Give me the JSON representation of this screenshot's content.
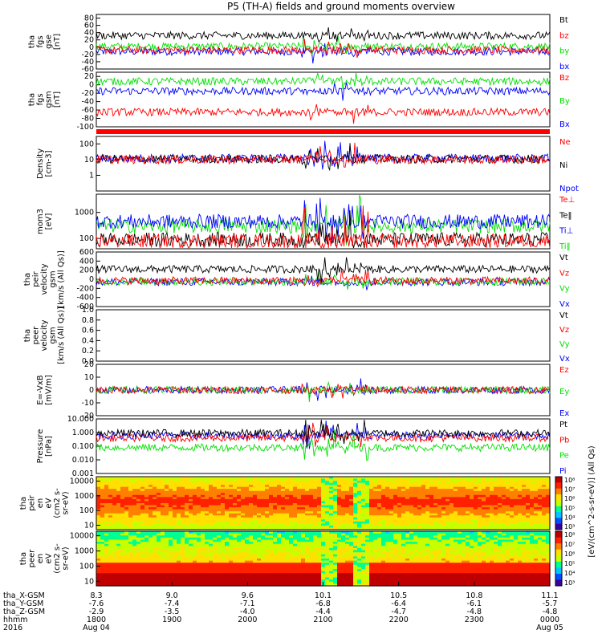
{
  "title": "P5 (TH-A) fields and ground moments overview",
  "colors": {
    "black": "#000000",
    "red": "#ff0000",
    "green": "#00e000",
    "blue": "#0000ff"
  },
  "chart_data": [
    {
      "type": "line",
      "ylabel": [
        "tha",
        "fgs",
        "gse",
        "[nT]"
      ],
      "ylim": [
        -60,
        90
      ],
      "yticks": [
        {
          "v": 80,
          "l": "80"
        },
        {
          "v": 60,
          "l": "60"
        },
        {
          "v": 40,
          "l": "40"
        },
        {
          "v": 20,
          "l": "20"
        },
        {
          "v": 0,
          "l": "0"
        },
        {
          "v": -20,
          "l": "-20"
        },
        {
          "v": -40,
          "l": "-40"
        },
        {
          "v": -60,
          "l": "-60"
        }
      ],
      "series": [
        {
          "name": "Bt",
          "color": "black",
          "base": 32
        },
        {
          "name": "bz",
          "color": "red",
          "base": -8
        },
        {
          "name": "by",
          "color": "green",
          "base": 2
        },
        {
          "name": "bx",
          "color": "blue",
          "base": -12
        }
      ]
    },
    {
      "type": "line",
      "ylabel": [
        "tha",
        "fgs",
        "gsm",
        "[nT]"
      ],
      "ylim": [
        -100,
        30
      ],
      "yticks": [
        {
          "v": 20,
          "l": "20"
        },
        {
          "v": 0,
          "l": "0"
        },
        {
          "v": -20,
          "l": "-20"
        },
        {
          "v": -40,
          "l": "-40"
        },
        {
          "v": -60,
          "l": "-60"
        },
        {
          "v": -80,
          "l": "-80"
        },
        {
          "v": -100,
          "l": "-100"
        }
      ],
      "series": [
        {
          "name": "Bz",
          "color": "red",
          "base": -65
        },
        {
          "name": "By",
          "color": "green",
          "base": 8
        },
        {
          "name": "Bx",
          "color": "blue",
          "base": -15
        }
      ]
    },
    {
      "type": "line",
      "ylabel": [
        "Density",
        "[cm-3]"
      ],
      "log": true,
      "ylim": [
        0.1,
        300
      ],
      "yticks": [
        {
          "v": 100,
          "l": "100"
        },
        {
          "v": 10,
          "l": "10"
        },
        {
          "v": 1,
          "l": "1"
        }
      ],
      "series": [
        {
          "name": "Ne",
          "color": "red",
          "base": 10
        },
        {
          "name": "Ni",
          "color": "black",
          "base": 11
        },
        {
          "name": "Npot",
          "color": "blue",
          "base": 12
        }
      ]
    },
    {
      "type": "line",
      "ylabel": [
        "mom3",
        "[eV]"
      ],
      "log": true,
      "ylim": [
        40,
        5000
      ],
      "yticks": [
        {
          "v": 1000,
          "l": "1000"
        },
        {
          "v": 100,
          "l": "100"
        }
      ],
      "series": [
        {
          "name": "Te⊥",
          "color": "red",
          "base": 80
        },
        {
          "name": "Te‖",
          "color": "black",
          "base": 90
        },
        {
          "name": "Ti⊥",
          "color": "blue",
          "base": 450
        },
        {
          "name": "Ti‖",
          "color": "green",
          "base": 300
        }
      ]
    },
    {
      "type": "line",
      "ylabel": [
        "tha",
        "peir",
        "velocity",
        "gsm",
        "[km/s (All Qs)]"
      ],
      "ylim": [
        -600,
        600
      ],
      "yticks": [
        {
          "v": 600,
          "l": "600"
        },
        {
          "v": 400,
          "l": "400"
        },
        {
          "v": 200,
          "l": "200"
        },
        {
          "v": 0,
          "l": "0"
        },
        {
          "v": -200,
          "l": "-200"
        },
        {
          "v": -400,
          "l": "-400"
        },
        {
          "v": -600,
          "l": "-600"
        }
      ],
      "series": [
        {
          "name": "Vt",
          "color": "black",
          "base": 220
        },
        {
          "name": "Vz",
          "color": "red",
          "base": -30
        },
        {
          "name": "Vy",
          "color": "green",
          "base": -50
        },
        {
          "name": "Vx",
          "color": "blue",
          "base": -60
        }
      ]
    },
    {
      "type": "line",
      "ylabel": [
        "tha",
        "peer",
        "velocity",
        "gsm",
        "[km/s (All Qs)]"
      ],
      "ylim": [
        0,
        1
      ],
      "yticks": [
        {
          "v": 1,
          "l": "1.0"
        },
        {
          "v": 0.8,
          "l": "0.8"
        },
        {
          "v": 0.6,
          "l": "0.6"
        },
        {
          "v": 0.4,
          "l": "0.4"
        },
        {
          "v": 0.2,
          "l": "0.2"
        },
        {
          "v": 0,
          "l": "0.0"
        }
      ],
      "series": [
        {
          "name": "Vt",
          "color": "black"
        },
        {
          "name": "Vz",
          "color": "red"
        },
        {
          "name": "Vy",
          "color": "green"
        },
        {
          "name": "Vx",
          "color": "blue"
        }
      ]
    },
    {
      "type": "line",
      "ylabel": [
        "E=-VxB",
        "[mV/m]"
      ],
      "ylim": [
        -20,
        20
      ],
      "yticks": [
        {
          "v": 20,
          "l": "20"
        },
        {
          "v": 10,
          "l": "10"
        },
        {
          "v": 0,
          "l": "0"
        },
        {
          "v": -10,
          "l": "-10"
        },
        {
          "v": -20,
          "l": "-20"
        }
      ],
      "series": [
        {
          "name": "Ez",
          "color": "red",
          "base": 0
        },
        {
          "name": "Ey",
          "color": "green",
          "base": 0
        },
        {
          "name": "Ex",
          "color": "blue",
          "base": 0
        }
      ]
    },
    {
      "type": "line",
      "ylabel": [
        "Pressure",
        "[nPa]"
      ],
      "log": true,
      "ylim": [
        0.001,
        10
      ],
      "yticks": [
        {
          "v": 10,
          "l": "10.000"
        },
        {
          "v": 1,
          "l": "1.000"
        },
        {
          "v": 0.1,
          "l": "0.100"
        },
        {
          "v": 0.01,
          "l": "0.010"
        },
        {
          "v": 0.001,
          "l": "0.001"
        }
      ],
      "series": [
        {
          "name": "Pt",
          "color": "black",
          "base": 0.9
        },
        {
          "name": "Pb",
          "color": "red",
          "base": 0.4
        },
        {
          "name": "Pe",
          "color": "green",
          "base": 0.08
        },
        {
          "name": "Pi",
          "color": "blue",
          "base": 0.6
        }
      ]
    },
    {
      "type": "heatmap",
      "ylabel": [
        "tha",
        "peir",
        "en",
        "eV",
        "(cm2 s-",
        "sr-eV)"
      ],
      "log": true,
      "ylim": [
        5,
        20000
      ],
      "yticks": [
        {
          "v": 10000,
          "l": "10000"
        },
        {
          "v": 1000,
          "l": "1000"
        },
        {
          "v": 100,
          "l": "100"
        },
        {
          "v": 10,
          "l": "10"
        }
      ]
    },
    {
      "type": "heatmap",
      "ylabel": [
        "tha",
        "peer",
        "en",
        "eV",
        "(cm2 s-",
        "sr-eV)"
      ],
      "log": true,
      "ylim": [
        5,
        20000
      ],
      "yticks": [
        {
          "v": 10000,
          "l": "10000"
        },
        {
          "v": 1000,
          "l": "1000"
        },
        {
          "v": 100,
          "l": "100"
        },
        {
          "v": 10,
          "l": "10"
        }
      ]
    }
  ],
  "colorbar": {
    "label": "[eV/(cm^2-s-sr-eV)] (All Qs)",
    "ticks_upper": [
      "10⁸",
      "10⁷",
      "10⁶",
      "10⁵",
      "10⁴",
      "10³"
    ],
    "ticks_lower": [
      "10⁸",
      "10⁷",
      "10⁶",
      "10⁵",
      "10⁴",
      "10³"
    ]
  },
  "x_axis": {
    "row_labels": [
      "tha_X-GSM",
      "tha_Y-GSM",
      "tha_Z-GSM",
      "hhmm",
      "2016"
    ],
    "ticks": [
      {
        "x": "8.3",
        "y": "-7.6",
        "z": "-2.9",
        "t": "1800",
        "d": "Aug 04"
      },
      {
        "x": "9.0",
        "y": "-7.4",
        "z": "-3.5",
        "t": "1900",
        "d": ""
      },
      {
        "x": "9.6",
        "y": "-7.1",
        "z": "-4.0",
        "t": "2000",
        "d": ""
      },
      {
        "x": "10.1",
        "y": "-6.8",
        "z": "-4.4",
        "t": "2100",
        "d": ""
      },
      {
        "x": "10.5",
        "y": "-6.4",
        "z": "-4.7",
        "t": "2200",
        "d": ""
      },
      {
        "x": "10.8",
        "y": "-6.1",
        "z": "-4.8",
        "t": "2300",
        "d": ""
      },
      {
        "x": "11.1",
        "y": "-5.7",
        "z": "-4.8",
        "t": "0000",
        "d": "Aug 05"
      }
    ]
  }
}
